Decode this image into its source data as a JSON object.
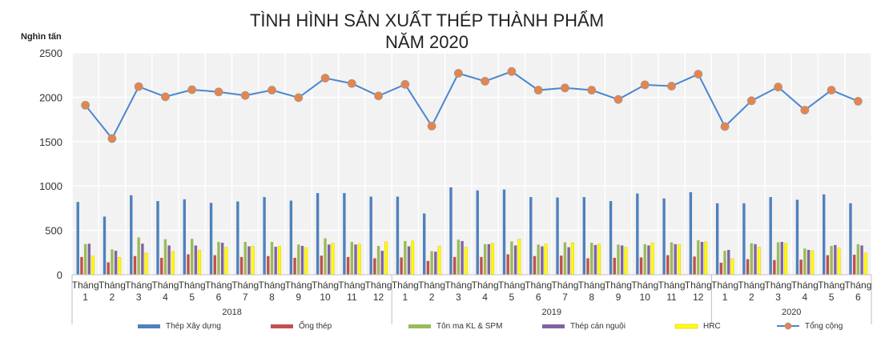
{
  "chart_data": {
    "type": "bar+line",
    "title_line1": "TÌNH HÌNH SẢN XUẤT THÉP THÀNH PHẨM",
    "title_line2": "NĂM 2020",
    "unit_label": "Nghìn tấn",
    "ylim": [
      0,
      2500
    ],
    "yticks": [
      0,
      500,
      1000,
      1500,
      2000,
      2500
    ],
    "grid": true,
    "legend_position": "bottom",
    "month_prefix": "Tháng",
    "groups": [
      {
        "year": "2018",
        "months": [
          "1",
          "2",
          "3",
          "4",
          "5",
          "6",
          "7",
          "8",
          "9",
          "10",
          "11",
          "12"
        ]
      },
      {
        "year": "2019",
        "months": [
          "1",
          "2",
          "3",
          "4",
          "5",
          "6",
          "7",
          "8",
          "9",
          "10",
          "11",
          "12"
        ]
      },
      {
        "year": "2020",
        "months": [
          "1",
          "2",
          "3",
          "4",
          "5",
          "6"
        ]
      }
    ],
    "series": [
      {
        "name": "Thép Xây dựng",
        "kind": "bar",
        "color": "#4f81bd",
        "values": [
          820,
          655,
          895,
          830,
          850,
          810,
          825,
          875,
          835,
          920,
          920,
          880,
          880,
          690,
          985,
          950,
          960,
          875,
          870,
          875,
          830,
          915,
          860,
          930,
          805,
          805,
          875,
          845,
          905,
          805
        ]
      },
      {
        "name": "Ống thép",
        "kind": "bar",
        "color": "#c0504d",
        "values": [
          200,
          140,
          210,
          190,
          230,
          220,
          200,
          210,
          190,
          215,
          200,
          185,
          195,
          155,
          200,
          200,
          230,
          210,
          215,
          185,
          190,
          195,
          220,
          205,
          135,
          175,
          165,
          170,
          220,
          225
        ]
      },
      {
        "name": "Tôn ma KL & SPM",
        "kind": "bar",
        "color": "#9bbb59",
        "values": [
          345,
          285,
          420,
          400,
          405,
          370,
          370,
          370,
          340,
          410,
          370,
          325,
          380,
          265,
          395,
          345,
          375,
          340,
          365,
          360,
          340,
          345,
          365,
          390,
          270,
          355,
          365,
          295,
          325,
          345
        ]
      },
      {
        "name": "Thép cán nguội",
        "kind": "bar",
        "color": "#8064a2",
        "values": [
          350,
          270,
          350,
          330,
          330,
          360,
          320,
          315,
          325,
          340,
          340,
          270,
          320,
          260,
          380,
          345,
          330,
          320,
          310,
          335,
          330,
          330,
          345,
          370,
          280,
          345,
          370,
          280,
          335,
          330
        ]
      },
      {
        "name": "HRC",
        "kind": "bar",
        "color": "#ffff00",
        "values": [
          210,
          195,
          245,
          260,
          275,
          310,
          320,
          320,
          305,
          355,
          345,
          370,
          380,
          320,
          310,
          355,
          400,
          345,
          360,
          345,
          310,
          360,
          340,
          370,
          180,
          310,
          355,
          270,
          300,
          245
        ]
      },
      {
        "name": "Tổng cộng",
        "kind": "line",
        "color": "#4a86cf",
        "marker_color": "#e8834a",
        "values": [
          1910,
          1535,
          2120,
          2005,
          2085,
          2060,
          2020,
          2080,
          1995,
          2215,
          2155,
          2015,
          2145,
          1675,
          2270,
          2180,
          2290,
          2080,
          2105,
          2080,
          1975,
          2140,
          2125,
          2260,
          1670,
          1960,
          2115,
          1855,
          2080,
          1955
        ]
      }
    ]
  }
}
